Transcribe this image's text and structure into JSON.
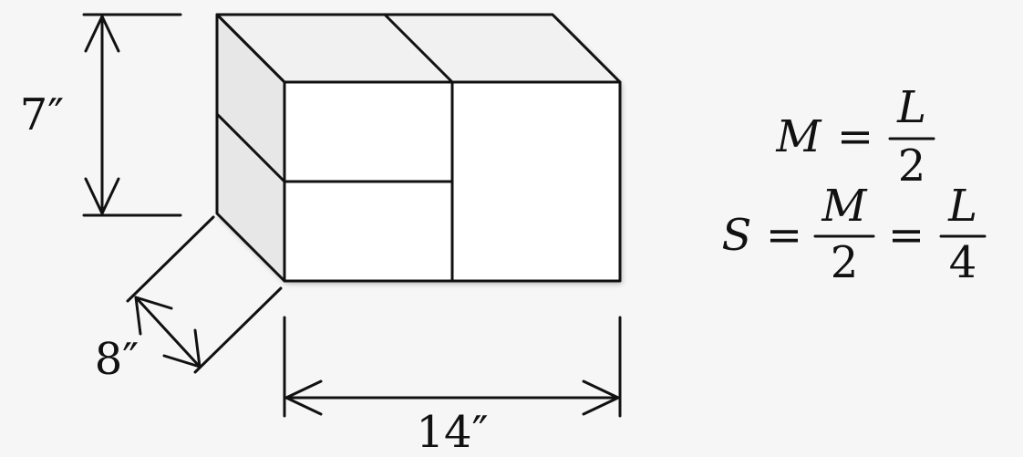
{
  "dimensions": {
    "height_label": "7″",
    "depth_label": "8″",
    "width_label": "14″"
  },
  "equations": {
    "eq1": {
      "lhs": "M",
      "eq": "=",
      "num": "L",
      "den": "2"
    },
    "eq2": {
      "lhs": "S",
      "eq1": "=",
      "num1": "M",
      "den1": "2",
      "eq2": "=",
      "num2": "L",
      "den2": "4"
    }
  },
  "colors": {
    "line": "#111111",
    "front_face": "#ffffff",
    "top_face": "#f1f1f1",
    "side_face": "#e7e7e7",
    "background": "#f6f6f6"
  }
}
